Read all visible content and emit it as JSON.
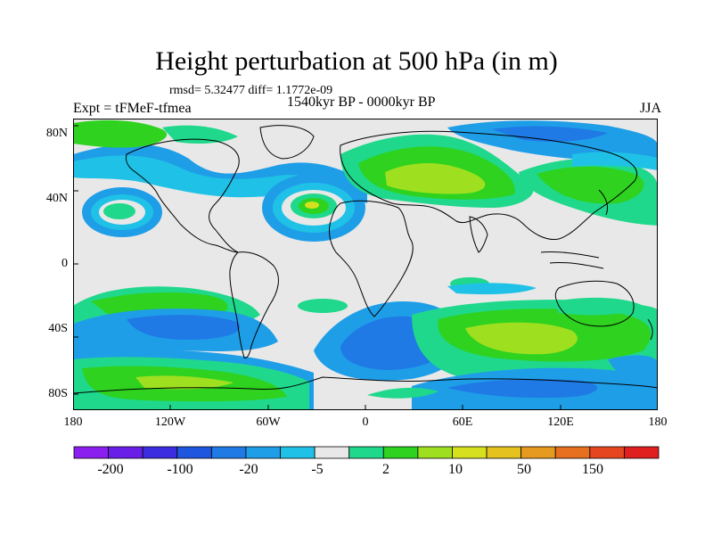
{
  "title": "Height perturbation at 500 hPa (in m)",
  "stats": "rmsd= 5.32477 diff= 1.1772e-09",
  "period": "1540kyr BP - 0000kyr BP",
  "experiment": "Expt = tFMeF-tfmea",
  "season": "JJA",
  "axes": {
    "lat_labels": [
      "80N",
      "40N",
      "0",
      "40S",
      "80S"
    ],
    "lon_labels": [
      "180",
      "120W",
      "60W",
      "0",
      "60E",
      "120E",
      "180"
    ]
  },
  "colorbar": {
    "labels": [
      "-200",
      "-100",
      "-20",
      "-5",
      "2",
      "10",
      "50",
      "150"
    ],
    "colors": [
      "#8b1ff0",
      "#6a1fe8",
      "#3c2ee0",
      "#1f56e0",
      "#1f7ae6",
      "#1f9ee8",
      "#1fc2e6",
      "#e8e8e8",
      "#1fd88c",
      "#2ed21f",
      "#9ee01f",
      "#d6e01f",
      "#e6c21f",
      "#e69a1f",
      "#e6701f",
      "#e6461f",
      "#e01f1f"
    ]
  },
  "palette": {
    "background": "#e8e8e8",
    "blue": "#1f9ee8",
    "light_blue": "#1fc2e6",
    "mid_blue": "#1f7ae6",
    "green": "#2ed21f",
    "teal": "#1fd88c",
    "yellow_green": "#9ee01f",
    "yellow": "#d6e01f"
  }
}
